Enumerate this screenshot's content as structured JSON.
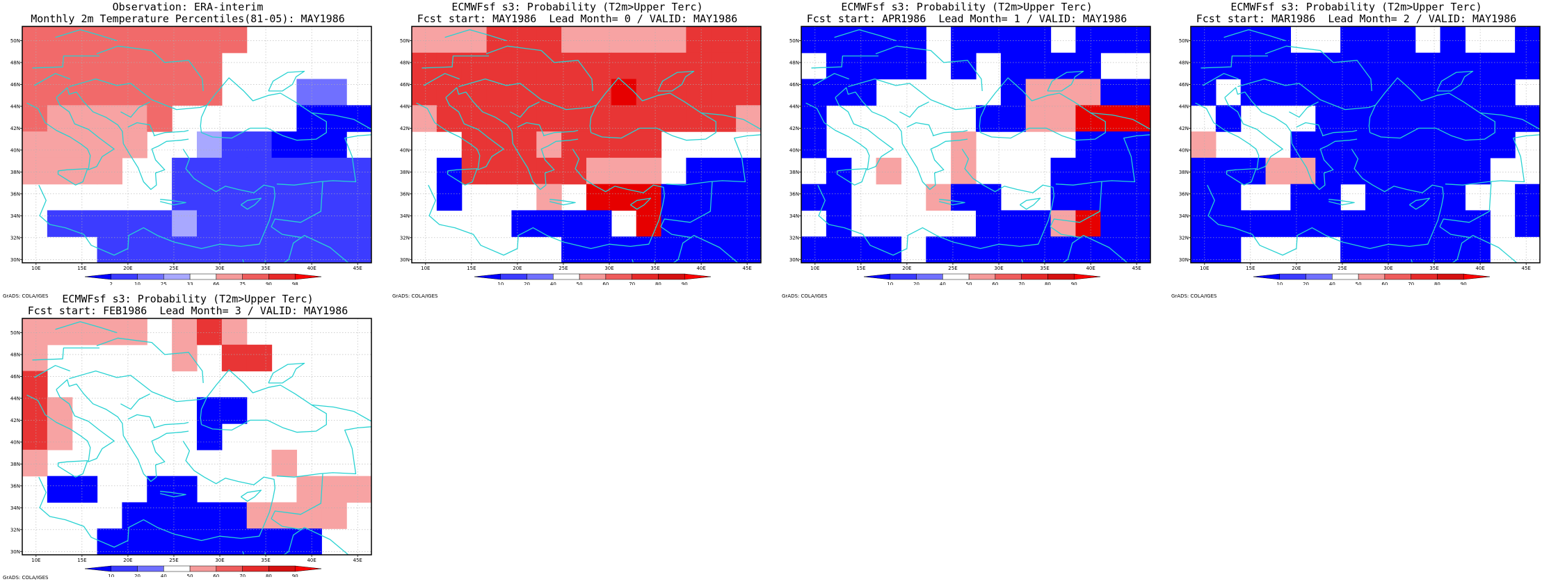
{
  "panels": [
    {
      "id": "obs",
      "title1": "Observation: ERA-interim",
      "title2": "Monthly 2m Temperature Percentiles(81-05): MAY1986",
      "colorbar_labels": [
        "2",
        "10",
        "25",
        "33",
        "66",
        "75",
        "90",
        "98"
      ],
      "colorbar_colors": [
        "#0000ff",
        "#3c3cff",
        "#7070ff",
        "#a8a8ff",
        "#ffffff",
        "#f59a9a",
        "#ee5c5c",
        "#e62a2a",
        "#ff0000"
      ],
      "grid": [
        "RRRRRRRRRRRRRRRRRRRRRRRRRRRRRRR___________",
        "RRRRRRRRRRRRRRRRRRRRRRRRRRRRRRR___________",
        "RRRRRRRRRRRRRRRRRRRRRRRRRRRR______________",
        "RRRRRRRRRRRRRRRRRRRRRRRRR_____________BBBBB",
        "RRRRRRRRRRRRRRRRRRR_______________BBBBBBBBBB",
        "RRRRRRRRRRRRRRRR__________________BBBBBBBBBB",
        "RRRRRRRRRRRR_________BBBBBBBBBBBBBBBBBBBBBBB",
        "RRRRRRRRRR_________BBBBBBBBBBBBBBBBBBBBBBBBB",
        "RRRRRRRR______________BBBBBBBBBBBBBBBBBBBBBB",
        "________________________BBBBBBBBBBBBBBBBBBBB",
        "BBBBBBBBBBBBBBBBBBBBBBBBBBBBBBBBBBBBBBBBBBBB",
        "____BBBBBBBBBBBBBBBBBBBBBBBBBBBBBBBBBBBBBBBB"
      ]
    },
    {
      "id": "lead0",
      "title1": "ECMWFsf s3: Probability (T2m>Upper Terc)",
      "title2": "Fcst start: MAY1986  Lead Month= 0 / VALID: MAY1986",
      "colorbar_labels": [
        "10",
        "20",
        "40",
        "50",
        "60",
        "70",
        "80",
        "90"
      ],
      "colorbar_colors": [
        "#0000ff",
        "#3c3cff",
        "#7070ff",
        "#ffffff",
        "#f59a9a",
        "#ee5c5c",
        "#e62a2a",
        "#d41010",
        "#ff0000"
      ]
    },
    {
      "id": "lead1",
      "title1": "ECMWFsf s3: Probability (T2m>Upper Terc)",
      "title2": "Fcst start: APR1986  Lead Month= 1 / VALID: MAY1986",
      "colorbar_labels": [
        "10",
        "20",
        "40",
        "50",
        "60",
        "70",
        "80",
        "90"
      ],
      "colorbar_colors": [
        "#0000ff",
        "#3c3cff",
        "#7070ff",
        "#ffffff",
        "#f59a9a",
        "#ee5c5c",
        "#e62a2a",
        "#d41010",
        "#ff0000"
      ]
    },
    {
      "id": "lead2",
      "title1": "ECMWFsf s3: Probability (T2m>Upper Terc)",
      "title2": "Fcst start: MAR1986  Lead Month= 2 / VALID: MAY1986",
      "colorbar_labels": [
        "10",
        "20",
        "40",
        "50",
        "60",
        "70",
        "80",
        "90"
      ],
      "colorbar_colors": [
        "#0000ff",
        "#3c3cff",
        "#7070ff",
        "#ffffff",
        "#f59a9a",
        "#ee5c5c",
        "#e62a2a",
        "#d41010",
        "#ff0000"
      ]
    },
    {
      "id": "lead3",
      "title1": "ECMWFsf s3: Probability (T2m>Upper Terc)",
      "title2": "Fcst start: FEB1986  Lead Month= 3 / VALID: MAY1986",
      "colorbar_labels": [
        "10",
        "20",
        "40",
        "50",
        "60",
        "70",
        "80",
        "90"
      ],
      "colorbar_colors": [
        "#0000ff",
        "#3c3cff",
        "#7070ff",
        "#ffffff",
        "#f59a9a",
        "#ee5c5c",
        "#e62a2a",
        "#d41010",
        "#ff0000"
      ]
    }
  ],
  "lon_labels": [
    "10E",
    "15E",
    "20E",
    "25E",
    "30E",
    "35E",
    "40E",
    "45E"
  ],
  "lat_labels": [
    "30N",
    "32N",
    "34N",
    "36N",
    "38N",
    "40N",
    "42N",
    "44N",
    "46N",
    "48N",
    "50N"
  ],
  "credit": "GrADS: COLA/IGES",
  "colors": {
    "coast": "#28d2d2",
    "grid_line": "#b0b0b0",
    "frame": "#000000",
    "blue_strong": "#0000ff",
    "blue_mid": "#3c3cff",
    "blue_light": "#7070ff",
    "blue_pale": "#a8a8ff",
    "red_pale": "#f7a3a3",
    "red_light": "#f16a6a",
    "red_mid": "#e83535",
    "red_strong": "#e60000",
    "red_deep": "#cc0000"
  }
}
